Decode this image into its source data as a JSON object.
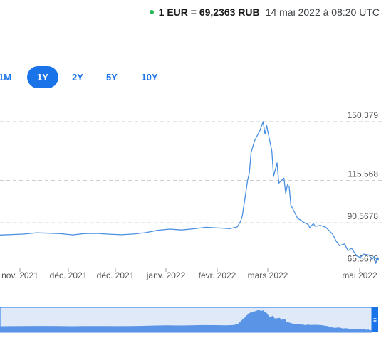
{
  "header": {
    "rate": "1 EUR = 69,2363 RUB",
    "timestamp": "14 mai 2022 à 08:20 UTC"
  },
  "range_tabs": [
    {
      "label": "1M",
      "active": false
    },
    {
      "label": "1Y",
      "active": true
    },
    {
      "label": "2Y",
      "active": false
    },
    {
      "label": "5Y",
      "active": false
    },
    {
      "label": "10Y",
      "active": false
    }
  ],
  "colors": {
    "accent": "#1a73e8",
    "series_line": "#4a90e2",
    "grid": "#c8c8c8",
    "navigator_fill": "#5a94e6",
    "navigator_bg": "#dfe9f8",
    "live_dot": "#1db954"
  },
  "chart_data": {
    "type": "line",
    "series": [
      {
        "x": [
          "2021-10-08",
          "2021-10-15",
          "2021-10-22",
          "2021-10-29",
          "2021-11-05",
          "2021-11-12",
          "2021-11-19",
          "2021-11-26",
          "2021-12-03",
          "2021-12-10",
          "2021-12-17",
          "2021-12-24",
          "2021-12-31",
          "2022-01-07",
          "2022-01-14",
          "2022-01-21",
          "2022-01-28",
          "2022-02-04",
          "2022-02-11",
          "2022-02-18",
          "2022-02-22",
          "2022-02-24",
          "2022-02-25",
          "2022-02-28",
          "2022-03-01",
          "2022-03-02",
          "2022-03-04",
          "2022-03-07",
          "2022-03-09",
          "2022-03-10",
          "2022-03-11",
          "2022-03-14",
          "2022-03-15",
          "2022-03-17",
          "2022-03-18",
          "2022-03-21",
          "2022-03-22",
          "2022-03-23",
          "2022-03-24",
          "2022-03-25",
          "2022-03-28",
          "2022-03-29",
          "2022-03-31",
          "2022-04-01",
          "2022-04-04",
          "2022-04-05",
          "2022-04-06",
          "2022-04-07",
          "2022-04-08",
          "2022-04-11",
          "2022-04-14",
          "2022-04-18",
          "2022-04-20",
          "2022-04-22",
          "2022-04-25",
          "2022-04-27",
          "2022-04-29",
          "2022-05-02",
          "2022-05-04",
          "2022-05-06",
          "2022-05-09",
          "2022-05-11",
          "2022-05-12",
          "2022-05-13",
          "2022-05-14"
        ],
        "y": [
          83.3,
          83.6,
          83.9,
          84.6,
          84.4,
          84.1,
          83.4,
          84.2,
          84.3,
          83.8,
          83.5,
          83.9,
          84.7,
          86.1,
          86.8,
          86.3,
          87.0,
          87.9,
          87.5,
          87.1,
          88.1,
          91.5,
          95.0,
          115.8,
          120.0,
          132.0,
          139.0,
          145.0,
          150.4,
          143.0,
          148.0,
          133.0,
          118.0,
          126.0,
          114.0,
          117.0,
          108.0,
          113.0,
          112.0,
          101.0,
          95.0,
          93.0,
          92.0,
          91.0,
          89.5,
          87.5,
          89.0,
          90.0,
          88.5,
          89.0,
          88.0,
          84.0,
          80.0,
          77.0,
          78.0,
          74.0,
          75.5,
          71.0,
          70.0,
          72.0,
          71.5,
          69.0,
          70.5,
          66.5,
          69.2
        ]
      }
    ],
    "xticks": [
      "nov. 2021",
      "déc. 2021",
      "déc. 2021",
      "janv. 2022",
      "févr. 2022",
      "mars 2022",
      "mai 2022"
    ],
    "yticks": [
      {
        "value": 150.379,
        "label": "150,379"
      },
      {
        "value": 115.568,
        "label": "115,568"
      },
      {
        "value": 90.5678,
        "label": "90,5678"
      },
      {
        "value": 65.5678,
        "label": "65,5678"
      }
    ],
    "xlim": [
      "2021-10-08",
      "2022-05-14"
    ],
    "ylim": [
      64.5,
      155
    ],
    "grid": true,
    "navigator": true
  }
}
